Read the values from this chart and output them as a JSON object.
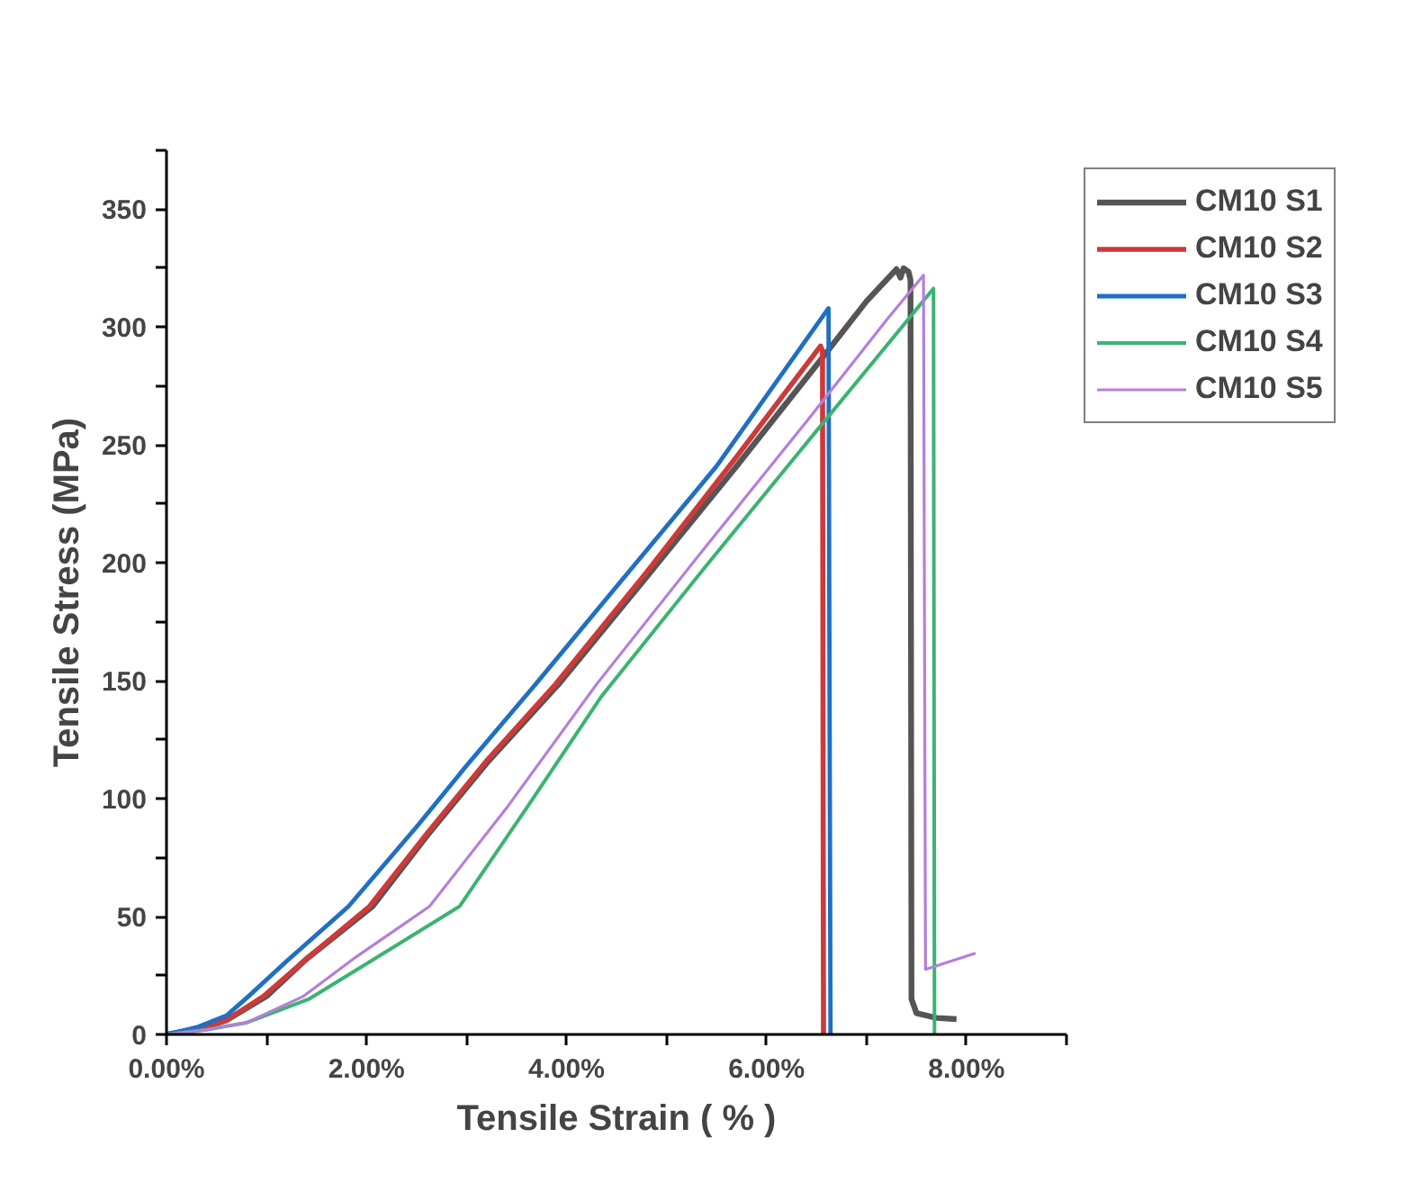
{
  "chart_data": {
    "type": "line",
    "xlabel": "Tensile Strain ( % )",
    "ylabel": "Tensile Stress (MPa)",
    "xlim": [
      0,
      9
    ],
    "ylim": [
      0,
      375
    ],
    "xticks": [
      {
        "value": 0,
        "label": "0.00%"
      },
      {
        "value": 1,
        "label": null
      },
      {
        "value": 2,
        "label": "2.00%"
      },
      {
        "value": 3,
        "label": null
      },
      {
        "value": 4,
        "label": "4.00%"
      },
      {
        "value": 5,
        "label": null
      },
      {
        "value": 6,
        "label": "6.00%"
      },
      {
        "value": 7,
        "label": null
      },
      {
        "value": 8,
        "label": "8.00%"
      },
      {
        "value": 9,
        "label": null
      }
    ],
    "yticks": [
      0,
      {
        "value": 25,
        "label": null
      },
      50,
      {
        "value": 75,
        "label": null
      },
      100,
      {
        "value": 125,
        "label": null
      },
      150,
      {
        "value": 175,
        "label": null
      },
      200,
      {
        "value": 225,
        "label": null
      },
      250,
      {
        "value": 275,
        "label": null
      },
      300,
      {
        "value": 325,
        "label": null
      },
      350,
      {
        "value": 375,
        "label": null
      }
    ],
    "grid": false,
    "legend": "top right",
    "marker": "none",
    "line_style": "solid",
    "series": [
      {
        "name": "CM10 S1",
        "color": "#555555",
        "x": [
          0,
          0.3,
          0.6,
          1.0,
          1.4,
          2.06,
          2.6,
          3.2,
          3.92,
          4.8,
          5.7,
          6.54,
          7.0,
          7.3,
          7.34,
          7.37,
          7.42,
          7.44,
          7.45,
          7.5,
          7.7,
          7.9
        ],
        "values": [
          0,
          2,
          6,
          16.2,
          32,
          54.3,
          84,
          115,
          148.5,
          194,
          241,
          286,
          311,
          324.6,
          321,
          325,
          323.5,
          320,
          15,
          9,
          7,
          6.5
        ]
      },
      {
        "name": "CM10 S2",
        "color": "#cc3a3a",
        "x": [
          0,
          0.3,
          0.6,
          0.97,
          1.4,
          2.03,
          2.6,
          3.2,
          3.89,
          4.8,
          5.7,
          6.54,
          6.56,
          6.57
        ],
        "values": [
          0,
          2,
          6,
          16.2,
          32,
          54.3,
          85,
          116,
          148.5,
          196,
          245,
          292,
          290,
          0
        ]
      },
      {
        "name": "CM10 S3",
        "color": "#1f6fc5",
        "x": [
          0,
          0.3,
          0.6,
          0.82,
          1.2,
          1.82,
          2.5,
          3.0,
          3.69,
          4.5,
          5.5,
          6.62,
          6.64
        ],
        "values": [
          0,
          3,
          8,
          16.2,
          31,
          54.3,
          88,
          114,
          148.5,
          190,
          241,
          308,
          0
        ]
      },
      {
        "name": "CM10 S4",
        "color": "#3cb371",
        "x": [
          0,
          0.4,
          0.8,
          1.42,
          2.0,
          2.93,
          3.6,
          4.35,
          5.4,
          6.5,
          7.67,
          7.68
        ],
        "values": [
          0,
          2,
          5,
          14.9,
          30,
          54.3,
          96,
          143.4,
          199,
          256,
          316.4,
          0
        ]
      },
      {
        "name": "CM10 S5",
        "color": "#b57edc",
        "x": [
          0,
          0.4,
          0.8,
          1.37,
          1.9,
          2.63,
          3.4,
          4.3,
          5.3,
          6.4,
          7.2,
          7.57,
          7.59,
          8.09
        ],
        "values": [
          0,
          2,
          5,
          16.2,
          33,
          54.3,
          96,
          148.5,
          202,
          260,
          303,
          322,
          27.6,
          34.5
        ]
      }
    ]
  }
}
